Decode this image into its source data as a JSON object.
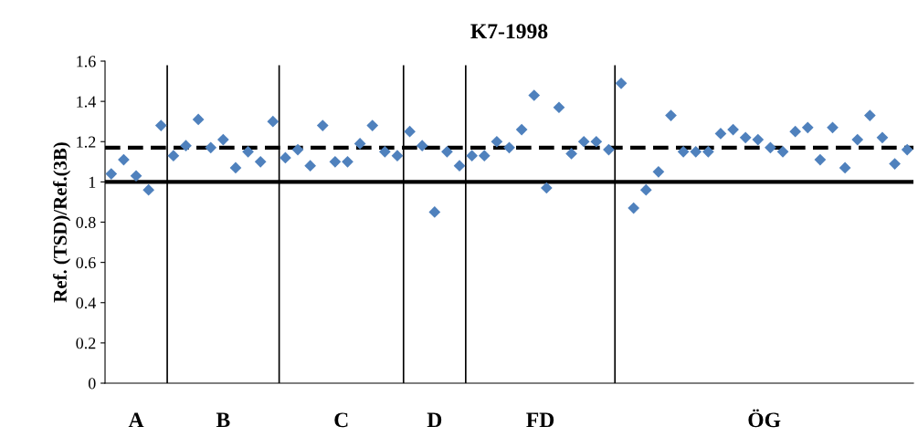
{
  "chart_data": {
    "type": "scatter",
    "title": "K7-1998",
    "ylabel": "Ref. (TSD)/Ref.(3B)",
    "categories": [
      null,
      null,
      null,
      null,
      null,
      null,
      null,
      null,
      null,
      null,
      null,
      null,
      null,
      null,
      null,
      null,
      null,
      null,
      null,
      null,
      null,
      null,
      null,
      null,
      null,
      null,
      null,
      null,
      null,
      null,
      null,
      null,
      null,
      null,
      null,
      null,
      null,
      null,
      null,
      null,
      null,
      null,
      null,
      null,
      null,
      null,
      null,
      null,
      null,
      null,
      null,
      null,
      null,
      null,
      null,
      null,
      null,
      null,
      null,
      null,
      null,
      null,
      null,
      null,
      null
    ],
    "series": [
      {
        "color": "#4f81bd",
        "values": [
          1.04,
          1.11,
          1.03,
          0.96,
          1.28,
          null,
          null,
          null,
          null,
          null,
          null,
          null,
          null,
          null,
          null,
          null,
          null,
          null,
          null,
          null,
          null,
          null,
          null,
          null,
          null,
          null,
          null,
          null,
          null,
          null,
          null,
          null,
          null,
          null,
          null,
          null,
          null,
          null,
          null,
          null,
          null,
          null,
          null,
          null,
          null,
          null,
          null,
          null,
          null,
          null,
          null,
          null,
          null,
          null,
          null,
          null,
          null,
          null,
          null,
          null,
          null,
          null,
          null,
          null,
          null
        ]
      },
      {
        "color": "#4f81bd",
        "values": [
          null,
          null,
          null,
          null,
          null,
          1.13,
          1.18,
          1.31,
          1.17,
          1.21,
          1.07,
          1.15,
          1.1,
          1.3,
          null,
          null,
          null,
          null,
          null,
          null,
          null,
          null,
          null,
          null,
          null,
          null,
          null,
          null,
          null,
          null,
          null,
          null,
          null,
          null,
          null,
          null,
          null,
          null,
          null,
          null,
          null,
          null,
          null,
          null,
          null,
          null,
          null,
          null,
          null,
          null,
          null,
          null,
          null,
          null,
          null,
          null,
          null,
          null,
          null,
          null,
          null,
          null,
          null,
          null,
          null
        ]
      },
      {
        "color": "#4f81bd",
        "values": [
          null,
          null,
          null,
          null,
          null,
          null,
          null,
          null,
          null,
          null,
          null,
          null,
          null,
          null,
          1.12,
          1.16,
          1.08,
          1.28,
          1.1,
          1.1,
          1.19,
          1.28,
          1.15,
          1.13,
          null,
          null,
          null,
          null,
          null,
          null,
          null,
          null,
          null,
          null,
          null,
          null,
          null,
          null,
          null,
          null,
          null,
          null,
          null,
          null,
          null,
          null,
          null,
          null,
          null,
          null,
          null,
          null,
          null,
          null,
          null,
          null,
          null,
          null,
          null,
          null,
          null,
          null,
          null,
          null,
          null
        ]
      },
      {
        "color": "#4f81bd",
        "values": [
          null,
          null,
          null,
          null,
          null,
          null,
          null,
          null,
          null,
          null,
          null,
          null,
          null,
          null,
          null,
          null,
          null,
          null,
          null,
          null,
          null,
          null,
          null,
          null,
          1.25,
          1.18,
          0.85,
          1.15,
          1.08,
          null,
          null,
          null,
          null,
          null,
          null,
          null,
          null,
          null,
          null,
          null,
          null,
          null,
          null,
          null,
          null,
          null,
          null,
          null,
          null,
          null,
          null,
          null,
          null,
          null,
          null,
          null,
          null,
          null,
          null,
          null,
          null,
          null,
          null,
          null,
          null
        ]
      },
      {
        "color": "#4f81bd",
        "values": [
          null,
          null,
          null,
          null,
          null,
          null,
          null,
          null,
          null,
          null,
          null,
          null,
          null,
          null,
          null,
          null,
          null,
          null,
          null,
          null,
          null,
          null,
          null,
          null,
          null,
          null,
          null,
          null,
          null,
          1.13,
          1.13,
          1.2,
          1.17,
          1.26,
          1.43,
          0.97,
          1.37,
          1.14,
          1.2,
          1.2,
          1.16,
          null,
          null,
          null,
          null,
          null,
          null,
          null,
          null,
          null,
          null,
          null,
          null,
          null,
          null,
          null,
          null,
          null,
          null,
          null,
          null,
          null,
          null,
          null,
          null
        ]
      },
      {
        "color": "#4f81bd",
        "values": [
          null,
          null,
          null,
          null,
          null,
          null,
          null,
          null,
          null,
          null,
          null,
          null,
          null,
          null,
          null,
          null,
          null,
          null,
          null,
          null,
          null,
          null,
          null,
          null,
          null,
          null,
          null,
          null,
          null,
          null,
          null,
          null,
          null,
          null,
          null,
          null,
          null,
          null,
          null,
          null,
          null,
          1.49,
          0.87,
          0.96,
          1.05,
          1.33,
          1.15,
          1.15,
          1.15,
          1.24,
          1.26,
          1.22,
          1.21,
          1.17,
          1.15,
          1.25,
          1.27,
          1.11,
          1.27,
          1.07,
          1.21,
          1.33,
          1.22,
          1.09,
          1.16
        ]
      }
    ],
    "marker": "diamond",
    "ylim": [
      0,
      1.6
    ],
    "yticks": [
      0,
      0.2,
      0.4,
      0.6,
      0.8,
      1,
      1.2,
      1.4,
      1.6
    ],
    "tick_labels": "y",
    "grid": false,
    "legend": false,
    "ref_lines": [
      {
        "axis": "y",
        "value": 1,
        "color": "#000000",
        "line_style": "solid"
      },
      {
        "axis": "y",
        "value": 1.17,
        "color": "#000000",
        "line_style": "dashed"
      }
    ],
    "annotations": [
      "A",
      "B",
      "C",
      "D",
      "FD",
      "ÖG"
    ]
  }
}
